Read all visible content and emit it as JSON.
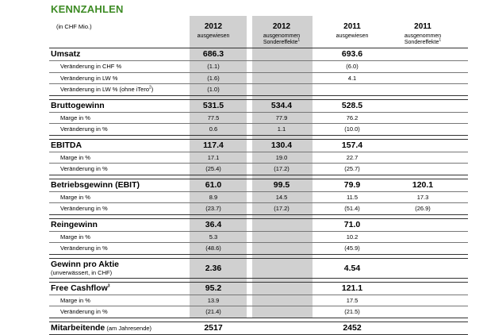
{
  "title": "KENNZAHLEN",
  "unit_label": "(in CHF Mio.)",
  "columns": [
    {
      "year": "2012",
      "sub": "ausgewiesen",
      "sub2": "",
      "sup": ""
    },
    {
      "year": "2012",
      "sub": "ausgenommen",
      "sub2": "Sondereffekte",
      "sup": "1"
    },
    {
      "year": "2011",
      "sub": "ausgewiesen",
      "sub2": "",
      "sup": ""
    },
    {
      "year": "2011",
      "sub": "ausgenommen",
      "sub2": "Sondereffekte",
      "sup": "1"
    }
  ],
  "sections": [
    {
      "label": "Umsatz",
      "values": [
        "686.3",
        "",
        "693.6",
        ""
      ],
      "rows": [
        {
          "label": "Veränderung in CHF %",
          "sup": "",
          "values": [
            "(1.1)",
            "",
            "(6.0)",
            ""
          ]
        },
        {
          "label": "Veränderung in LW %",
          "sup": "",
          "values": [
            "(1.6)",
            "",
            "4.1",
            ""
          ]
        },
        {
          "label": "Veränderung in LW % (ohne iTero",
          "sup": "2",
          "suffix": ")",
          "values": [
            "(1.0)",
            "",
            "",
            ""
          ]
        }
      ]
    },
    {
      "label": "Bruttogewinn",
      "values": [
        "531.5",
        "534.4",
        "528.5",
        ""
      ],
      "rows": [
        {
          "label": "Marge in %",
          "sup": "",
          "values": [
            "77.5",
            "77.9",
            "76.2",
            ""
          ]
        },
        {
          "label": "Veränderung in %",
          "sup": "",
          "values": [
            "0.6",
            "1.1",
            "(10.0)",
            ""
          ]
        }
      ]
    },
    {
      "label": "EBITDA",
      "values": [
        "117.4",
        "130.4",
        "157.4",
        ""
      ],
      "rows": [
        {
          "label": "Marge in %",
          "sup": "",
          "values": [
            "17.1",
            "19.0",
            "22.7",
            ""
          ]
        },
        {
          "label": "Veränderung in %",
          "sup": "",
          "values": [
            "(25.4)",
            "(17.2)",
            "(25.7)",
            ""
          ]
        }
      ]
    },
    {
      "label": "Betriebsgewinn (EBIT)",
      "values": [
        "61.0",
        "99.5",
        "79.9",
        "120.1"
      ],
      "rows": [
        {
          "label": "Marge in %",
          "sup": "",
          "values": [
            "8.9",
            "14.5",
            "11.5",
            "17.3"
          ]
        },
        {
          "label": "Veränderung in %",
          "sup": "",
          "values": [
            "(23.7)",
            "(17.2)",
            "(51.4)",
            "(26.9)"
          ]
        }
      ]
    },
    {
      "label": "Reingewinn",
      "values": [
        "36.4",
        "",
        "71.0",
        ""
      ],
      "rows": [
        {
          "label": "Marge in %",
          "sup": "",
          "values": [
            "5.3",
            "",
            "10.2",
            ""
          ]
        },
        {
          "label": "Veränderung in %",
          "sup": "",
          "values": [
            "(48.6)",
            "",
            "(45.9)",
            ""
          ]
        }
      ]
    },
    {
      "label": "Gewinn pro Aktie",
      "sublabel": "(unverwässert, in CHF)",
      "values": [
        "2.36",
        "",
        "4.54",
        ""
      ],
      "rows": []
    },
    {
      "label": "Free Cashflow",
      "sup": "3",
      "values": [
        "95.2",
        "",
        "121.1",
        ""
      ],
      "rows": [
        {
          "label": "Marge in %",
          "sup": "",
          "values": [
            "13.9",
            "",
            "17.5",
            ""
          ]
        },
        {
          "label": "Veränderung in %",
          "sup": "",
          "values": [
            "(21.4)",
            "",
            "(21.5)",
            ""
          ]
        }
      ]
    },
    {
      "label": "Mitarbeitende",
      "sublabel_inline": "(am Jahresende)",
      "values": [
        "2517",
        "",
        "2452",
        ""
      ],
      "rows": []
    }
  ]
}
